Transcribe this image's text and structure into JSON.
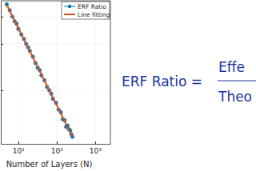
{
  "chart_data": {
    "type": "line",
    "xlabel": "Number of Layers (N)",
    "x": [
      5,
      6,
      7,
      8,
      9,
      10,
      12,
      14,
      16,
      18,
      20,
      24,
      28,
      32,
      36,
      40,
      48,
      56,
      64,
      72,
      80,
      96,
      112,
      128,
      144,
      160,
      176,
      192,
      208,
      224,
      240,
      256
    ],
    "series": [
      {
        "name": "ERF Ratio",
        "color": "#0072bd",
        "marker": "circle",
        "line_style": "solid",
        "values": [
          0.36,
          0.33,
          0.3,
          0.28,
          0.27,
          0.25,
          0.23,
          0.215,
          0.2,
          0.19,
          0.18,
          0.165,
          0.15,
          0.14,
          0.135,
          0.125,
          0.116,
          0.105,
          0.1,
          0.095,
          0.088,
          0.083,
          0.075,
          0.072,
          0.065,
          0.064,
          0.058,
          0.059,
          0.056,
          0.055,
          0.052,
          0.05
        ]
      },
      {
        "name": "Line fitting",
        "color": "#d95319",
        "line_style": "solid",
        "x": [
          5,
          256
        ],
        "values": [
          0.358,
          0.05
        ]
      }
    ],
    "xlim": [
      3.5,
      2500
    ],
    "ylim": [
      0.045,
      0.38
    ],
    "xticks": [
      {
        "value": 10,
        "label": "10¹"
      },
      {
        "value": 100,
        "label": "10²"
      },
      {
        "value": 1000,
        "label": "10³"
      }
    ],
    "yticks": [
      0.1,
      0.2,
      0.3
    ],
    "log": true,
    "grid": true,
    "legend": "upper right",
    "tick_labels": "x",
    "annotations": [
      "ERF Ratio =",
      "Effe",
      "Theo"
    ]
  }
}
